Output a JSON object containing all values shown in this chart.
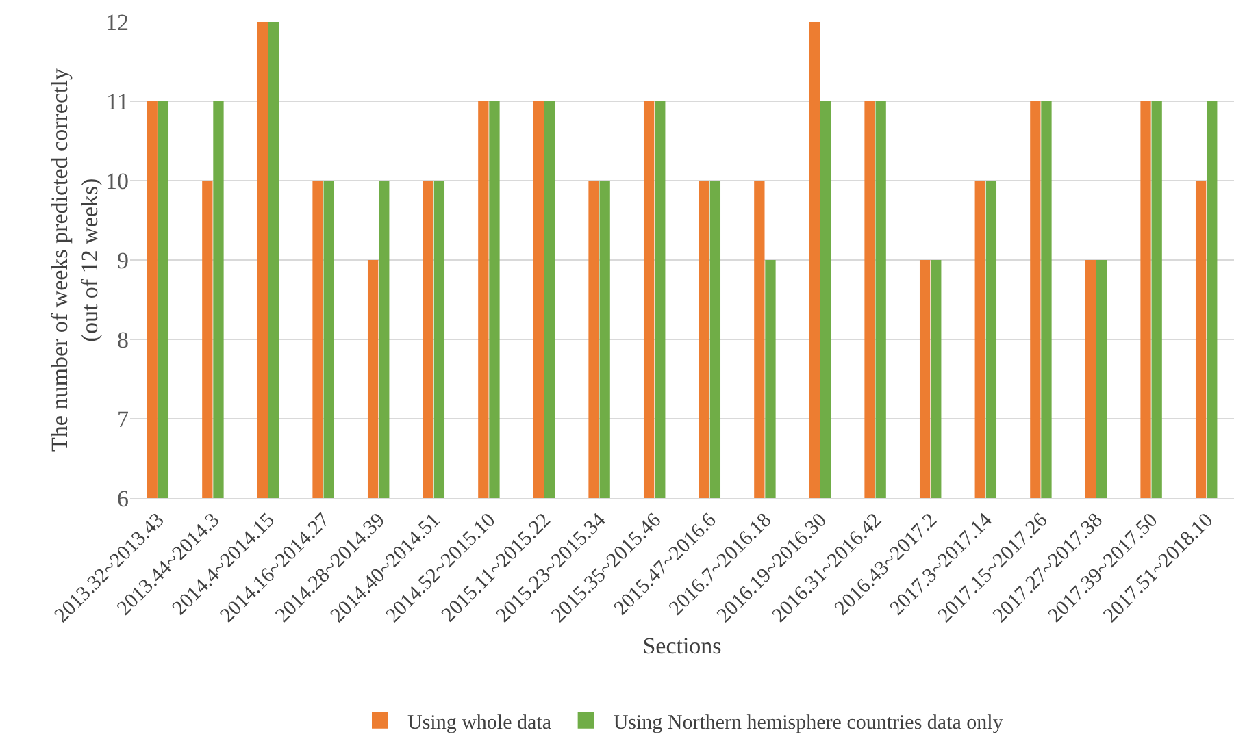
{
  "chart_data": {
    "type": "bar",
    "xlabel": "Sections",
    "ylabel": "The number of weeks predicted correctly\n(out of 12 weeks)",
    "categories": [
      "2013.32~2013.43",
      "2013.44~2014.3",
      "2014.4~2014.15",
      "2014.16~2014.27",
      "2014.28~2014.39",
      "2014.40~2014.51",
      "2014.52~2015.10",
      "2015.11~2015.22",
      "2015.23~2015.34",
      "2015.35~2015.46",
      "2015.47~2016.6",
      "2016.7~2016.18",
      "2016.19~2016.30",
      "2016.31~2016.42",
      "2016.43~2017.2",
      "2017.3~2017.14",
      "2017.15~2017.26",
      "2017.27~2017.38",
      "2017.39~2017.50",
      "2017.51~2018.10"
    ],
    "series": [
      {
        "name": "Using whole data",
        "color": "#ed7d31",
        "values": [
          11,
          10,
          12,
          10,
          9,
          10,
          11,
          11,
          10,
          11,
          10,
          10,
          12,
          11,
          9,
          10,
          11,
          9,
          11,
          10
        ]
      },
      {
        "name": "Using Northern hemisphere countries data only",
        "color": "#70ad47",
        "values": [
          11,
          11,
          12,
          10,
          10,
          10,
          11,
          11,
          10,
          11,
          10,
          9,
          11,
          11,
          9,
          10,
          11,
          9,
          11,
          11
        ]
      }
    ],
    "ylim": [
      6,
      12
    ],
    "yticks": [
      6,
      7,
      8,
      9,
      10,
      11,
      12
    ],
    "grid": "y",
    "legend": "bottom"
  }
}
